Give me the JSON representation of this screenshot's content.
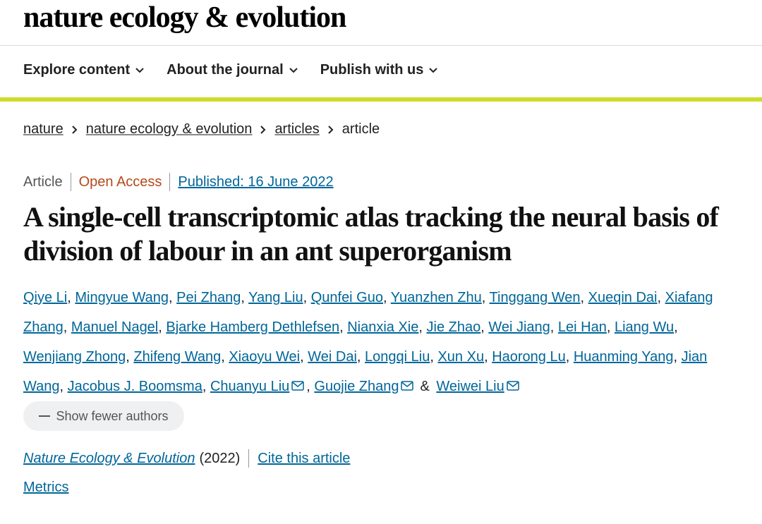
{
  "header": {
    "logo": "nature ecology & evolution"
  },
  "nav": [
    "Explore content",
    "About the journal",
    "Publish with us"
  ],
  "breadcrumb": [
    "nature",
    "nature ecology & evolution",
    "articles",
    "article"
  ],
  "article": {
    "type": "Article",
    "access": "Open Access",
    "published": "Published: 16 June 2022",
    "title": "A single-cell transcriptomic atlas tracking the neural basis of division of labour in an ant superorganism",
    "author_separator": ",",
    "last_separator": "&",
    "authors": [
      {
        "name": "Qiye Li",
        "email": false
      },
      {
        "name": "Mingyue Wang",
        "email": false
      },
      {
        "name": "Pei Zhang",
        "email": false
      },
      {
        "name": "Yang Liu",
        "email": false
      },
      {
        "name": "Qunfei Guo",
        "email": false
      },
      {
        "name": "Yuanzhen Zhu",
        "email": false
      },
      {
        "name": "Tinggang Wen",
        "email": false
      },
      {
        "name": "Xueqin Dai",
        "email": false
      },
      {
        "name": "Xiafang Zhang",
        "email": false
      },
      {
        "name": "Manuel Nagel",
        "email": false
      },
      {
        "name": "Bjarke Hamberg Dethlefsen",
        "email": false
      },
      {
        "name": "Nianxia Xie",
        "email": false
      },
      {
        "name": "Jie Zhao",
        "email": false
      },
      {
        "name": "Wei Jiang",
        "email": false
      },
      {
        "name": "Lei Han",
        "email": false
      },
      {
        "name": "Liang Wu",
        "email": false
      },
      {
        "name": "Wenjiang Zhong",
        "email": false
      },
      {
        "name": "Zhifeng Wang",
        "email": false
      },
      {
        "name": "Xiaoyu Wei",
        "email": false
      },
      {
        "name": "Wei Dai",
        "email": false
      },
      {
        "name": "Longqi Liu",
        "email": false
      },
      {
        "name": "Xun Xu",
        "email": false
      },
      {
        "name": "Haorong Lu",
        "email": false
      },
      {
        "name": "Huanming Yang",
        "email": false
      },
      {
        "name": "Jian Wang",
        "email": false
      },
      {
        "name": "Jacobus J. Boomsma",
        "email": false
      },
      {
        "name": "Chuanyu Liu",
        "email": true
      },
      {
        "name": "Guojie Zhang",
        "email": true
      },
      {
        "name": "Weiwei Liu",
        "email": true
      }
    ],
    "show_authors_button": "Show fewer authors",
    "journal": "Nature Ecology & Evolution",
    "year": "(2022)",
    "cite": "Cite this article",
    "metrics": "Metrics"
  }
}
